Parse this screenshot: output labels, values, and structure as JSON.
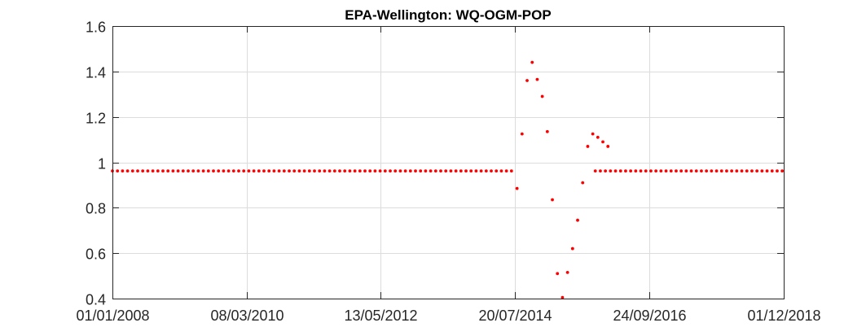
{
  "chart_data": {
    "type": "scatter",
    "title": "EPA-Wellington: WQ-OGM-POP",
    "xlabel": "",
    "ylabel": "",
    "x_axis": {
      "scale": "date",
      "range": [
        "2008-01-01",
        "2018-12-01"
      ],
      "ticks": [
        "2008-01-01",
        "2010-03-08",
        "2012-05-13",
        "2014-07-20",
        "2016-09-24",
        "2018-12-01"
      ],
      "tick_labels": [
        "01/01/2008",
        "08/03/2010",
        "13/05/2012",
        "20/07/2014",
        "24/09/2016",
        "01/12/2018"
      ]
    },
    "y_axis": {
      "range": [
        0.4,
        1.6
      ],
      "ticks": [
        0.4,
        0.6,
        0.8,
        1,
        1.2,
        1.4,
        1.6
      ],
      "tick_labels": [
        "0.4",
        "0.6",
        "0.8",
        "1",
        "1.2",
        "1.4",
        "1.6"
      ]
    },
    "grid": true,
    "marker_color": "#ff0000",
    "series": [
      {
        "constant_segments": [
          {
            "start": "2008-01-01",
            "end": "2014-07-01",
            "step_days": 30,
            "y": 0.962
          },
          {
            "start": "2015-11-08",
            "end": "2018-12-01",
            "step_days": 30,
            "y": 0.962
          }
        ],
        "points": [
          {
            "x": "2014-07-31",
            "y": 0.885
          },
          {
            "x": "2014-08-30",
            "y": 1.125
          },
          {
            "x": "2014-09-29",
            "y": 1.36
          },
          {
            "x": "2014-10-29",
            "y": 1.44
          },
          {
            "x": "2014-11-28",
            "y": 1.365
          },
          {
            "x": "2014-12-28",
            "y": 1.29
          },
          {
            "x": "2015-01-27",
            "y": 1.135
          },
          {
            "x": "2015-02-26",
            "y": 0.835
          },
          {
            "x": "2015-03-28",
            "y": 0.51
          },
          {
            "x": "2015-04-27",
            "y": 0.405
          },
          {
            "x": "2015-05-27",
            "y": 0.515
          },
          {
            "x": "2015-06-26",
            "y": 0.62
          },
          {
            "x": "2015-07-26",
            "y": 0.745
          },
          {
            "x": "2015-08-25",
            "y": 0.91
          },
          {
            "x": "2015-09-24",
            "y": 1.07
          },
          {
            "x": "2015-10-24",
            "y": 1.125
          },
          {
            "x": "2015-11-23",
            "y": 1.11
          },
          {
            "x": "2015-12-23",
            "y": 1.09
          },
          {
            "x": "2016-01-22",
            "y": 1.07
          }
        ]
      }
    ]
  }
}
